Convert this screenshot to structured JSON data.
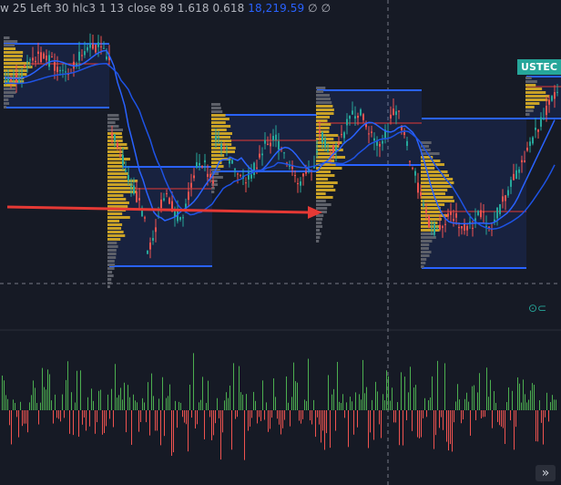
{
  "header": {
    "indicator_text": "w 25 Left 30 hlc3 1 13 close 89 1.618 0.618",
    "price_value": "18,219.59",
    "trailing_symbols": "∅ ∅"
  },
  "ticker_tag": "USTEC",
  "session_icon_glyph": "⊙⊂",
  "nav_button_glyph": "»",
  "colors": {
    "background": "#161a25",
    "bull": "#26a69a",
    "bear": "#ef5350",
    "profile_value_area": "#c9a227",
    "profile_outside": "#5d6069",
    "range_lines": "#2962ff",
    "poc_line": "#e53935",
    "arrow": "#e53935",
    "volume_up": "#4caf50",
    "volume_down": "#ef5350"
  },
  "icons": {
    "session": "session-icon",
    "scroll_right": "double-chevron-right-icon",
    "arrow_annotation": "long-right-arrow-icon"
  }
}
